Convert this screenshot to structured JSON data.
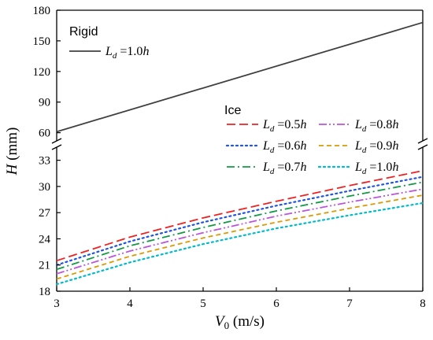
{
  "chart_data": {
    "type": "line",
    "x_axis": {
      "label_symbol": "V",
      "label_sub": "0",
      "label_unit": " (m/s)",
      "range": [
        3,
        8
      ],
      "ticks": [
        3,
        4,
        5,
        6,
        7,
        8
      ]
    },
    "y_axis": {
      "label_symbol": "H",
      "label_unit": " (mm)",
      "broken": true,
      "lower_range": [
        18,
        34.5
      ],
      "lower_ticks": [
        18,
        21,
        24,
        27,
        30,
        33
      ],
      "upper_range": [
        52,
        180
      ],
      "upper_ticks": [
        60,
        90,
        120,
        150,
        180
      ]
    },
    "legend_groups": [
      {
        "title": "Rigid",
        "placement": "top-left"
      },
      {
        "title": "Ice",
        "placement": "center-right"
      }
    ],
    "series": [
      {
        "group": "Rigid",
        "name": "L_d =1.0h",
        "sub_d": "d",
        "value_text": " =1.0",
        "h_text": "h",
        "color": "#404040",
        "dash": "solid",
        "panel": "upper",
        "x": [
          3,
          8
        ],
        "y": [
          61,
          168
        ]
      },
      {
        "group": "Ice",
        "name": "L_d =0.5h",
        "sub_d": "d",
        "value_text": " =0.5",
        "h_text": "h",
        "color": "#ee2222",
        "dash": "dash",
        "panel": "lower",
        "x": [
          3,
          4,
          5,
          6,
          7,
          8
        ],
        "y": [
          21.5,
          24.2,
          26.4,
          28.3,
          30.1,
          31.8
        ]
      },
      {
        "group": "Ice",
        "name": "L_d =0.6h",
        "sub_d": "d",
        "value_text": " =0.6",
        "h_text": "h",
        "color": "#2255dd",
        "dash": "dot",
        "panel": "lower",
        "x": [
          3,
          4,
          5,
          6,
          7,
          8
        ],
        "y": [
          21.0,
          23.7,
          25.9,
          27.8,
          29.5,
          31.1
        ]
      },
      {
        "group": "Ice",
        "name": "L_d =0.7h",
        "sub_d": "d",
        "value_text": " =0.7",
        "h_text": "h",
        "color": "#119944",
        "dash": "dashdot",
        "panel": "lower",
        "x": [
          3,
          4,
          5,
          6,
          7,
          8
        ],
        "y": [
          20.5,
          23.2,
          25.3,
          27.2,
          28.9,
          30.5
        ]
      },
      {
        "group": "Ice",
        "name": "L_d =0.8h",
        "sub_d": "d",
        "value_text": " =0.8",
        "h_text": "h",
        "color": "#bb55dd",
        "dash": "dashdotdot",
        "panel": "lower",
        "x": [
          3,
          4,
          5,
          6,
          7,
          8
        ],
        "y": [
          20.0,
          22.6,
          24.7,
          26.6,
          28.2,
          29.7
        ]
      },
      {
        "group": "Ice",
        "name": "L_d =0.9h",
        "sub_d": "d",
        "value_text": " =0.9",
        "h_text": "h",
        "color": "#dd9900",
        "dash": "shortdash",
        "panel": "lower",
        "x": [
          3,
          4,
          5,
          6,
          7,
          8
        ],
        "y": [
          19.4,
          22.0,
          24.1,
          25.9,
          27.5,
          29.0
        ]
      },
      {
        "group": "Ice",
        "name": "L_d =1.0h",
        "sub_d": "d",
        "value_text": " =1.0",
        "h_text": "h",
        "color": "#00bbcc",
        "dash": "dot",
        "panel": "lower",
        "x": [
          3,
          4,
          5,
          6,
          7,
          8
        ],
        "y": [
          18.8,
          21.3,
          23.4,
          25.2,
          26.7,
          28.1
        ]
      }
    ],
    "grid": false
  }
}
